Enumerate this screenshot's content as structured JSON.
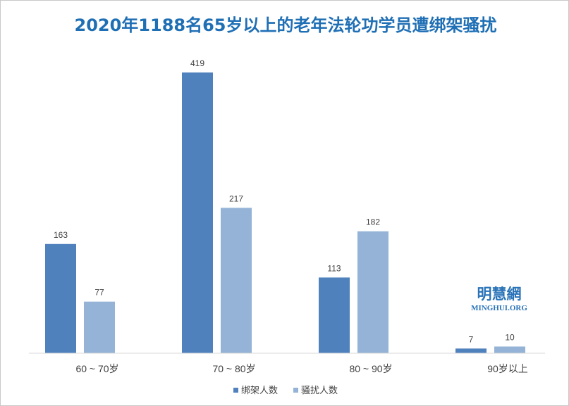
{
  "chart_data": {
    "type": "bar",
    "title": "2020年1188名65岁以上的老年法轮功学员遭绑架骚扰",
    "categories": [
      "60 ~ 70岁",
      "70 ~ 80岁",
      "80 ~ 90岁",
      "90岁以上"
    ],
    "series": [
      {
        "name": "绑架人数",
        "values": [
          163,
          419,
          113,
          7
        ],
        "color": "#4f81bd"
      },
      {
        "name": "骚扰人数",
        "values": [
          77,
          217,
          182,
          10
        ],
        "color": "#95b3d7"
      }
    ],
    "ylim": [
      0,
      419
    ],
    "grid": false,
    "legend_position": "bottom"
  },
  "watermark": {
    "line1": "明慧網",
    "line2": "MINGHUI.ORG",
    "color": "#2a73b8"
  },
  "colors": {
    "title": "#1f6fb5",
    "axis": "#d9d9d9",
    "label_text": "#404040"
  }
}
